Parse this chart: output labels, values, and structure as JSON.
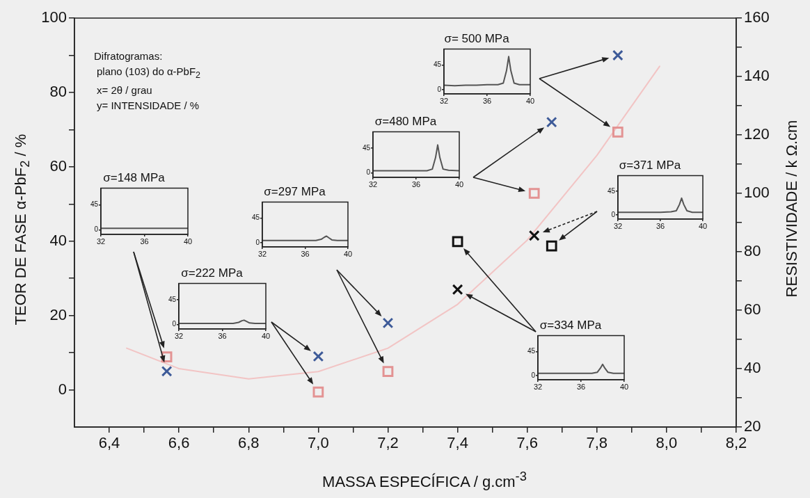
{
  "chart_data": [
    {
      "type": "scatter",
      "xlabel": "MASSA ESPECÍFICA / g.cm$^{-3}$",
      "ylabel": "TEOR DE FASE  α-PbF$_{2}$ / %",
      "y2label": "RESISTIVIDADE / k Ω.cm",
      "annotations": [
        "Difratogramas:",
        "plano (103) do α-PbF$_{2}$",
        "x= 2θ / grau",
        "y= INTENSIDADE / %"
      ],
      "x": [
        6.565,
        7.0,
        7.2,
        7.4,
        7.62,
        7.67,
        7.86
      ],
      "marker": "square",
      "series": [
        {
          "marker": "cross",
          "color": "#3d5a98",
          "colors": [
            "#3d5a98",
            "#3d5a98",
            "#3d5a98",
            "#111111",
            "#111111",
            "#3d5a98",
            "#3d5a98"
          ],
          "values": [
            5,
            9,
            18,
            27,
            41.5,
            72,
            90
          ]
        },
        {
          "axis": "y2",
          "color": "#e39393",
          "colors": [
            "#e39393",
            "#e39393",
            "#e39393",
            "#111111",
            "#e39393",
            "#111111",
            "#e39393"
          ],
          "values": [
            44,
            32,
            39,
            83.5,
            100,
            82,
            121
          ]
        },
        {
          "type": "line",
          "axis": "y2",
          "marker": "none",
          "color": "#f2c4c4",
          "x": [
            6.45,
            6.6,
            6.8,
            7.0,
            7.2,
            7.4,
            7.6,
            7.8,
            7.98
          ],
          "values": [
            47,
            40,
            36.5,
            39,
            47,
            62,
            84,
            113,
            143.5
          ]
        }
      ],
      "xlim": [
        6.3,
        8.2
      ],
      "xticks": [
        {
          "value": 6.4,
          "label": "6,4"
        },
        {
          "value": 6.5,
          "label": null
        },
        {
          "value": 6.6,
          "label": "6,6"
        },
        {
          "value": 6.7,
          "label": null
        },
        {
          "value": 6.8,
          "label": "6,8"
        },
        {
          "value": 6.9,
          "label": null
        },
        {
          "value": 7.0,
          "label": "7,0"
        },
        {
          "value": 7.1,
          "label": null
        },
        {
          "value": 7.2,
          "label": "7,2"
        },
        {
          "value": 7.3,
          "label": null
        },
        {
          "value": 7.4,
          "label": "7,4"
        },
        {
          "value": 7.5,
          "label": null
        },
        {
          "value": 7.6,
          "label": "7,6"
        },
        {
          "value": 7.7,
          "label": null
        },
        {
          "value": 7.8,
          "label": "7,8"
        },
        {
          "value": 7.9,
          "label": null
        },
        {
          "value": 8.0,
          "label": "8,0"
        },
        {
          "value": 8.1,
          "label": null
        },
        {
          "value": 8.2,
          "label": "8,2"
        }
      ],
      "ylim": [
        -10,
        100
      ],
      "yticks": [
        0,
        {
          "value": 10,
          "label": null
        },
        20,
        {
          "value": 30,
          "label": null
        },
        40,
        {
          "value": 50,
          "label": null
        },
        60,
        {
          "value": 70,
          "label": null
        },
        80,
        {
          "value": 90,
          "label": null
        },
        100
      ],
      "y2lim": [
        20,
        160
      ],
      "y2ticks": [
        20,
        {
          "value": 30,
          "label": null
        },
        40,
        {
          "value": 50,
          "label": null
        },
        60,
        {
          "value": 70,
          "label": null
        },
        80,
        {
          "value": 90,
          "label": null
        },
        100,
        {
          "value": 110,
          "label": null
        },
        120,
        {
          "value": 130,
          "label": null
        },
        140,
        {
          "value": 150,
          "label": null
        },
        160
      ]
    },
    {
      "type": "line",
      "title": "σ= 500 MPa",
      "marker": "none",
      "color": "#555555",
      "x": [
        32,
        33,
        34,
        35,
        36,
        37,
        37.5,
        37.8,
        38,
        38.2,
        38.5,
        39,
        40
      ],
      "values": [
        8,
        7,
        8,
        8,
        9,
        9,
        12,
        35,
        61,
        35,
        12,
        9,
        9
      ],
      "xlim": [
        32,
        40
      ],
      "xticks": [
        32,
        36,
        40
      ],
      "ylim": [
        -8,
        75
      ],
      "yticks": [
        0,
        45
      ]
    },
    {
      "type": "line",
      "title": "σ=480 MPa",
      "marker": "none",
      "color": "#555555",
      "x": [
        32,
        33,
        34,
        35,
        36,
        37,
        37.5,
        37.8,
        38,
        38.2,
        38.5,
        39,
        40
      ],
      "values": [
        4,
        4,
        4,
        4,
        4,
        4,
        7,
        28,
        51,
        28,
        7,
        5,
        4
      ],
      "xlim": [
        32,
        40
      ],
      "xticks": [
        32,
        36,
        40
      ],
      "ylim": [
        -8,
        75
      ],
      "yticks": [
        0,
        45
      ]
    },
    {
      "type": "line",
      "title": "σ=371 MPa",
      "marker": "none",
      "color": "#555555",
      "x": [
        32,
        33,
        34,
        35,
        36,
        37,
        37.5,
        37.8,
        38,
        38.2,
        38.5,
        39,
        40
      ],
      "values": [
        5,
        5,
        5,
        5,
        5,
        6,
        8,
        20,
        32,
        20,
        8,
        5,
        5
      ],
      "xlim": [
        32,
        40
      ],
      "xticks": [
        32,
        36,
        40
      ],
      "ylim": [
        -8,
        75
      ],
      "yticks": [
        0,
        45
      ]
    },
    {
      "type": "line",
      "title": "σ=148 MPa",
      "marker": "none",
      "color": "#555555",
      "x": [
        32,
        33,
        34,
        35,
        36,
        37,
        37.5,
        37.8,
        38,
        38.2,
        38.5,
        39,
        40
      ],
      "values": [
        3,
        3,
        3,
        3,
        3,
        3,
        3,
        3,
        3,
        3,
        3,
        3,
        3
      ],
      "xlim": [
        32,
        40
      ],
      "xticks": [
        32,
        36,
        40
      ],
      "ylim": [
        -8,
        75
      ],
      "yticks": [
        0,
        45
      ]
    },
    {
      "type": "line",
      "title": "σ=297 MPa",
      "marker": "none",
      "color": "#555555",
      "x": [
        32,
        33,
        34,
        35,
        36,
        37,
        37.5,
        37.8,
        38,
        38.2,
        38.5,
        39,
        40
      ],
      "values": [
        4,
        4,
        4,
        4,
        4,
        4,
        6,
        10,
        12,
        9,
        5,
        4,
        4
      ],
      "xlim": [
        32,
        40
      ],
      "xticks": [
        32,
        36,
        40
      ],
      "ylim": [
        -8,
        75
      ],
      "yticks": [
        0,
        45
      ]
    },
    {
      "type": "line",
      "title": "σ=222 MPa",
      "marker": "none",
      "color": "#555555",
      "x": [
        32,
        33,
        34,
        35,
        36,
        37,
        37.5,
        37.8,
        38,
        38.2,
        38.5,
        39,
        40
      ],
      "values": [
        2,
        2,
        2,
        2,
        2,
        2,
        4,
        7,
        8,
        6,
        3,
        2,
        2
      ],
      "xlim": [
        32,
        40
      ],
      "xticks": [
        32,
        36,
        40
      ],
      "ylim": [
        -8,
        75
      ],
      "yticks": [
        0,
        45
      ]
    },
    {
      "type": "line",
      "title": "σ=334 MPa",
      "marker": "none",
      "color": "#555555",
      "x": [
        32,
        33,
        34,
        35,
        36,
        37,
        37.5,
        37.8,
        38,
        38.2,
        38.5,
        39,
        40
      ],
      "values": [
        4,
        4,
        4,
        4,
        4,
        4,
        6,
        14,
        21,
        14,
        6,
        4,
        4
      ],
      "xlim": [
        32,
        40
      ],
      "xticks": [
        32,
        36,
        40
      ],
      "ylim": [
        -8,
        75
      ],
      "yticks": [
        0,
        45
      ]
    }
  ]
}
